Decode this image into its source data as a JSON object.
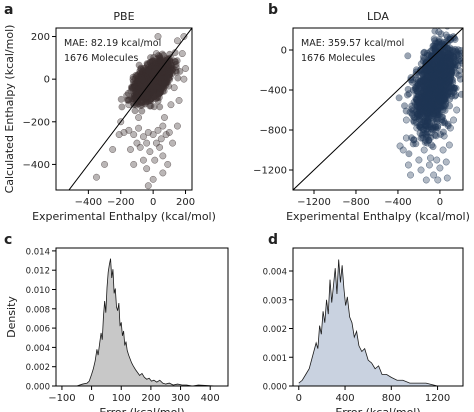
{
  "chart_data": [
    {
      "panel": "a",
      "type": "scatter",
      "title": "PBE",
      "xlabel": "Experimental Enthalpy (kcal/mol)",
      "ylabel": "Calculated Enthalpy (kcal/mol)",
      "xlim": [
        -600,
        240
      ],
      "ylim": [
        -520,
        240
      ],
      "xticks": [
        -400,
        -200,
        0,
        200
      ],
      "yticks": [
        200,
        0,
        -200,
        -400
      ],
      "annotation": [
        "MAE: 82.19 kcal/mol",
        "1676 Molecules"
      ],
      "reference_line": "y = x",
      "color": "#3a2e2e",
      "cloud_center": [
        -5,
        -5
      ],
      "cloud_spread_along": 60,
      "cloud_spread_across": 32,
      "cloud_tilt": 0.7,
      "points": [
        [
          -150,
          -240
        ],
        [
          -120,
          -260
        ],
        [
          -90,
          -230
        ],
        [
          -100,
          -300
        ],
        [
          -60,
          -270
        ],
        [
          -30,
          -250
        ],
        [
          0,
          -260
        ],
        [
          30,
          -240
        ],
        [
          60,
          -220
        ],
        [
          -20,
          -340
        ],
        [
          20,
          -300
        ],
        [
          50,
          -280
        ],
        [
          80,
          -260
        ],
        [
          10,
          -380
        ],
        [
          40,
          -320
        ],
        [
          100,
          -250
        ],
        [
          -200,
          -200
        ],
        [
          -180,
          -250
        ],
        [
          -250,
          -330
        ],
        [
          -300,
          -400
        ],
        [
          -40,
          -420
        ],
        [
          60,
          -360
        ],
        [
          120,
          -300
        ],
        [
          150,
          -220
        ],
        [
          160,
          -100
        ],
        [
          190,
          0
        ],
        [
          200,
          50
        ],
        [
          180,
          120
        ],
        [
          150,
          180
        ],
        [
          190,
          200
        ],
        [
          60,
          30
        ],
        [
          90,
          80
        ],
        [
          -60,
          -380
        ],
        [
          -120,
          -400
        ],
        [
          -210,
          -260
        ],
        [
          -90,
          -180
        ],
        [
          -150,
          -120
        ],
        [
          -10,
          60
        ],
        [
          20,
          120
        ],
        [
          110,
          100
        ],
        [
          130,
          -40
        ],
        [
          70,
          -180
        ],
        [
          -350,
          -460
        ],
        [
          -30,
          -500
        ],
        [
          0,
          -470
        ],
        [
          60,
          -440
        ],
        [
          90,
          -400
        ],
        [
          -80,
          -320
        ],
        [
          -140,
          -330
        ],
        [
          30,
          200
        ],
        [
          -40,
          -300
        ],
        [
          110,
          -120
        ],
        [
          140,
          40
        ]
      ]
    },
    {
      "panel": "b",
      "type": "scatter",
      "title": "LDA",
      "xlabel": "Experimental Enthalpy (kcal/mol)",
      "ylabel": "",
      "xlim": [
        -1400,
        220
      ],
      "ylim": [
        -1400,
        220
      ],
      "xticks": [
        -1200,
        -800,
        -400,
        0
      ],
      "yticks": [
        0,
        -400,
        -800,
        -1200
      ],
      "annotation": [
        "MAE: 359.57 kcal/mol",
        "1676 Molecules"
      ],
      "reference_line": "y = x",
      "color": "#1f3655",
      "cloud_center": [
        -50,
        -350
      ],
      "cloud_spread_along": 95,
      "cloud_spread_across": 55,
      "cloud_tilt": 0.5,
      "points": [
        [
          -350,
          -1000
        ],
        [
          -300,
          -1150
        ],
        [
          -280,
          -1250
        ],
        [
          -250,
          -900
        ],
        [
          -200,
          -1100
        ],
        [
          -180,
          -1200
        ],
        [
          -150,
          -1000
        ],
        [
          -130,
          -1300
        ],
        [
          -100,
          -1150
        ],
        [
          -80,
          -950
        ],
        [
          -60,
          -1250
        ],
        [
          -30,
          -1100
        ],
        [
          0,
          -1180
        ],
        [
          30,
          -1000
        ],
        [
          60,
          -1120
        ],
        [
          90,
          -950
        ],
        [
          -120,
          -820
        ],
        [
          -220,
          -780
        ],
        [
          -320,
          -880
        ],
        [
          40,
          -860
        ],
        [
          100,
          -780
        ],
        [
          130,
          -700
        ],
        [
          -380,
          -960
        ],
        [
          -20,
          -1300
        ],
        [
          70,
          -1280
        ],
        [
          -90,
          -1080
        ],
        [
          160,
          -600
        ],
        [
          150,
          -450
        ],
        [
          120,
          -300
        ],
        [
          100,
          100
        ],
        [
          60,
          150
        ],
        [
          -10,
          180
        ],
        [
          -320,
          -700
        ],
        [
          -260,
          -650
        ]
      ]
    },
    {
      "panel": "c",
      "type": "area",
      "title": "",
      "xlabel": "Error (kcal/mol)",
      "ylabel": "Density",
      "xlim": [
        -120,
        460
      ],
      "ylim": [
        0,
        0.0143
      ],
      "xticks": [
        -100,
        0,
        100,
        200,
        300,
        400
      ],
      "yticks": [
        0.0,
        0.002,
        0.004,
        0.006,
        0.008,
        0.01,
        0.012,
        0.014
      ],
      "ytick_labels": [
        "0.000",
        "0.002",
        "0.004",
        "0.006",
        "0.008",
        "0.010",
        "0.012",
        "0.014"
      ],
      "fill": "#c8c8c8",
      "x": [
        -50,
        -30,
        -15,
        -8,
        0,
        6,
        12,
        18,
        22,
        28,
        32,
        36,
        40,
        44,
        48,
        52,
        56,
        60,
        64,
        68,
        72,
        76,
        80,
        84,
        88,
        92,
        96,
        100,
        104,
        108,
        112,
        116,
        120,
        125,
        130,
        135,
        140,
        148,
        155,
        162,
        170,
        178,
        186,
        194,
        202,
        210,
        220,
        230,
        240,
        250,
        262,
        275,
        290,
        305,
        320,
        340,
        360,
        420
      ],
      "y": [
        0.0,
        0.0002,
        0.0003,
        0.0005,
        0.0012,
        0.0018,
        0.0026,
        0.0038,
        0.0032,
        0.0046,
        0.0055,
        0.0048,
        0.0072,
        0.0088,
        0.0076,
        0.0102,
        0.0118,
        0.0126,
        0.0132,
        0.0112,
        0.0121,
        0.0096,
        0.0101,
        0.0082,
        0.0078,
        0.0086,
        0.0062,
        0.0066,
        0.0052,
        0.0057,
        0.0042,
        0.0046,
        0.0037,
        0.0032,
        0.0028,
        0.0024,
        0.0021,
        0.0017,
        0.0014,
        0.0011,
        0.0013,
        0.0009,
        0.0007,
        0.0008,
        0.0005,
        0.0006,
        0.0004,
        0.0006,
        0.0003,
        0.0002,
        0.0003,
        0.0001,
        0.0002,
        0.0001,
        0.0001,
        0.0,
        0.0001,
        0.0
      ]
    },
    {
      "panel": "d",
      "type": "area",
      "title": "",
      "xlabel": "Error (kcal/mol)",
      "ylabel": "",
      "xlim": [
        -50,
        1420
      ],
      "ylim": [
        0,
        0.0048
      ],
      "xticks": [
        0,
        400,
        800,
        1200
      ],
      "yticks": [
        0.0,
        0.001,
        0.002,
        0.003,
        0.004
      ],
      "ytick_labels": [
        "0.000",
        "0.001",
        "0.002",
        "0.003",
        "0.004"
      ],
      "fill": "#c9d2e0",
      "x": [
        0,
        30,
        60,
        90,
        110,
        130,
        150,
        165,
        180,
        195,
        210,
        225,
        240,
        255,
        270,
        285,
        300,
        315,
        330,
        345,
        360,
        375,
        390,
        405,
        420,
        440,
        460,
        480,
        500,
        520,
        545,
        570,
        600,
        630,
        660,
        690,
        720,
        760,
        800,
        850,
        900,
        960,
        1020,
        1100,
        1200,
        1300
      ],
      "y": [
        0.0001,
        0.0002,
        0.0004,
        0.0006,
        0.0009,
        0.0012,
        0.0015,
        0.0013,
        0.0021,
        0.0018,
        0.0026,
        0.0022,
        0.003,
        0.0025,
        0.0037,
        0.0029,
        0.0035,
        0.0041,
        0.0032,
        0.0044,
        0.0036,
        0.0042,
        0.0034,
        0.0028,
        0.0031,
        0.0024,
        0.0022,
        0.0017,
        0.0019,
        0.0014,
        0.0012,
        0.0013,
        0.0009,
        0.0008,
        0.0006,
        0.0007,
        0.0004,
        0.0004,
        0.0003,
        0.0002,
        0.0002,
        0.0001,
        0.0001,
        0.0001,
        0.0,
        0.0
      ]
    }
  ]
}
